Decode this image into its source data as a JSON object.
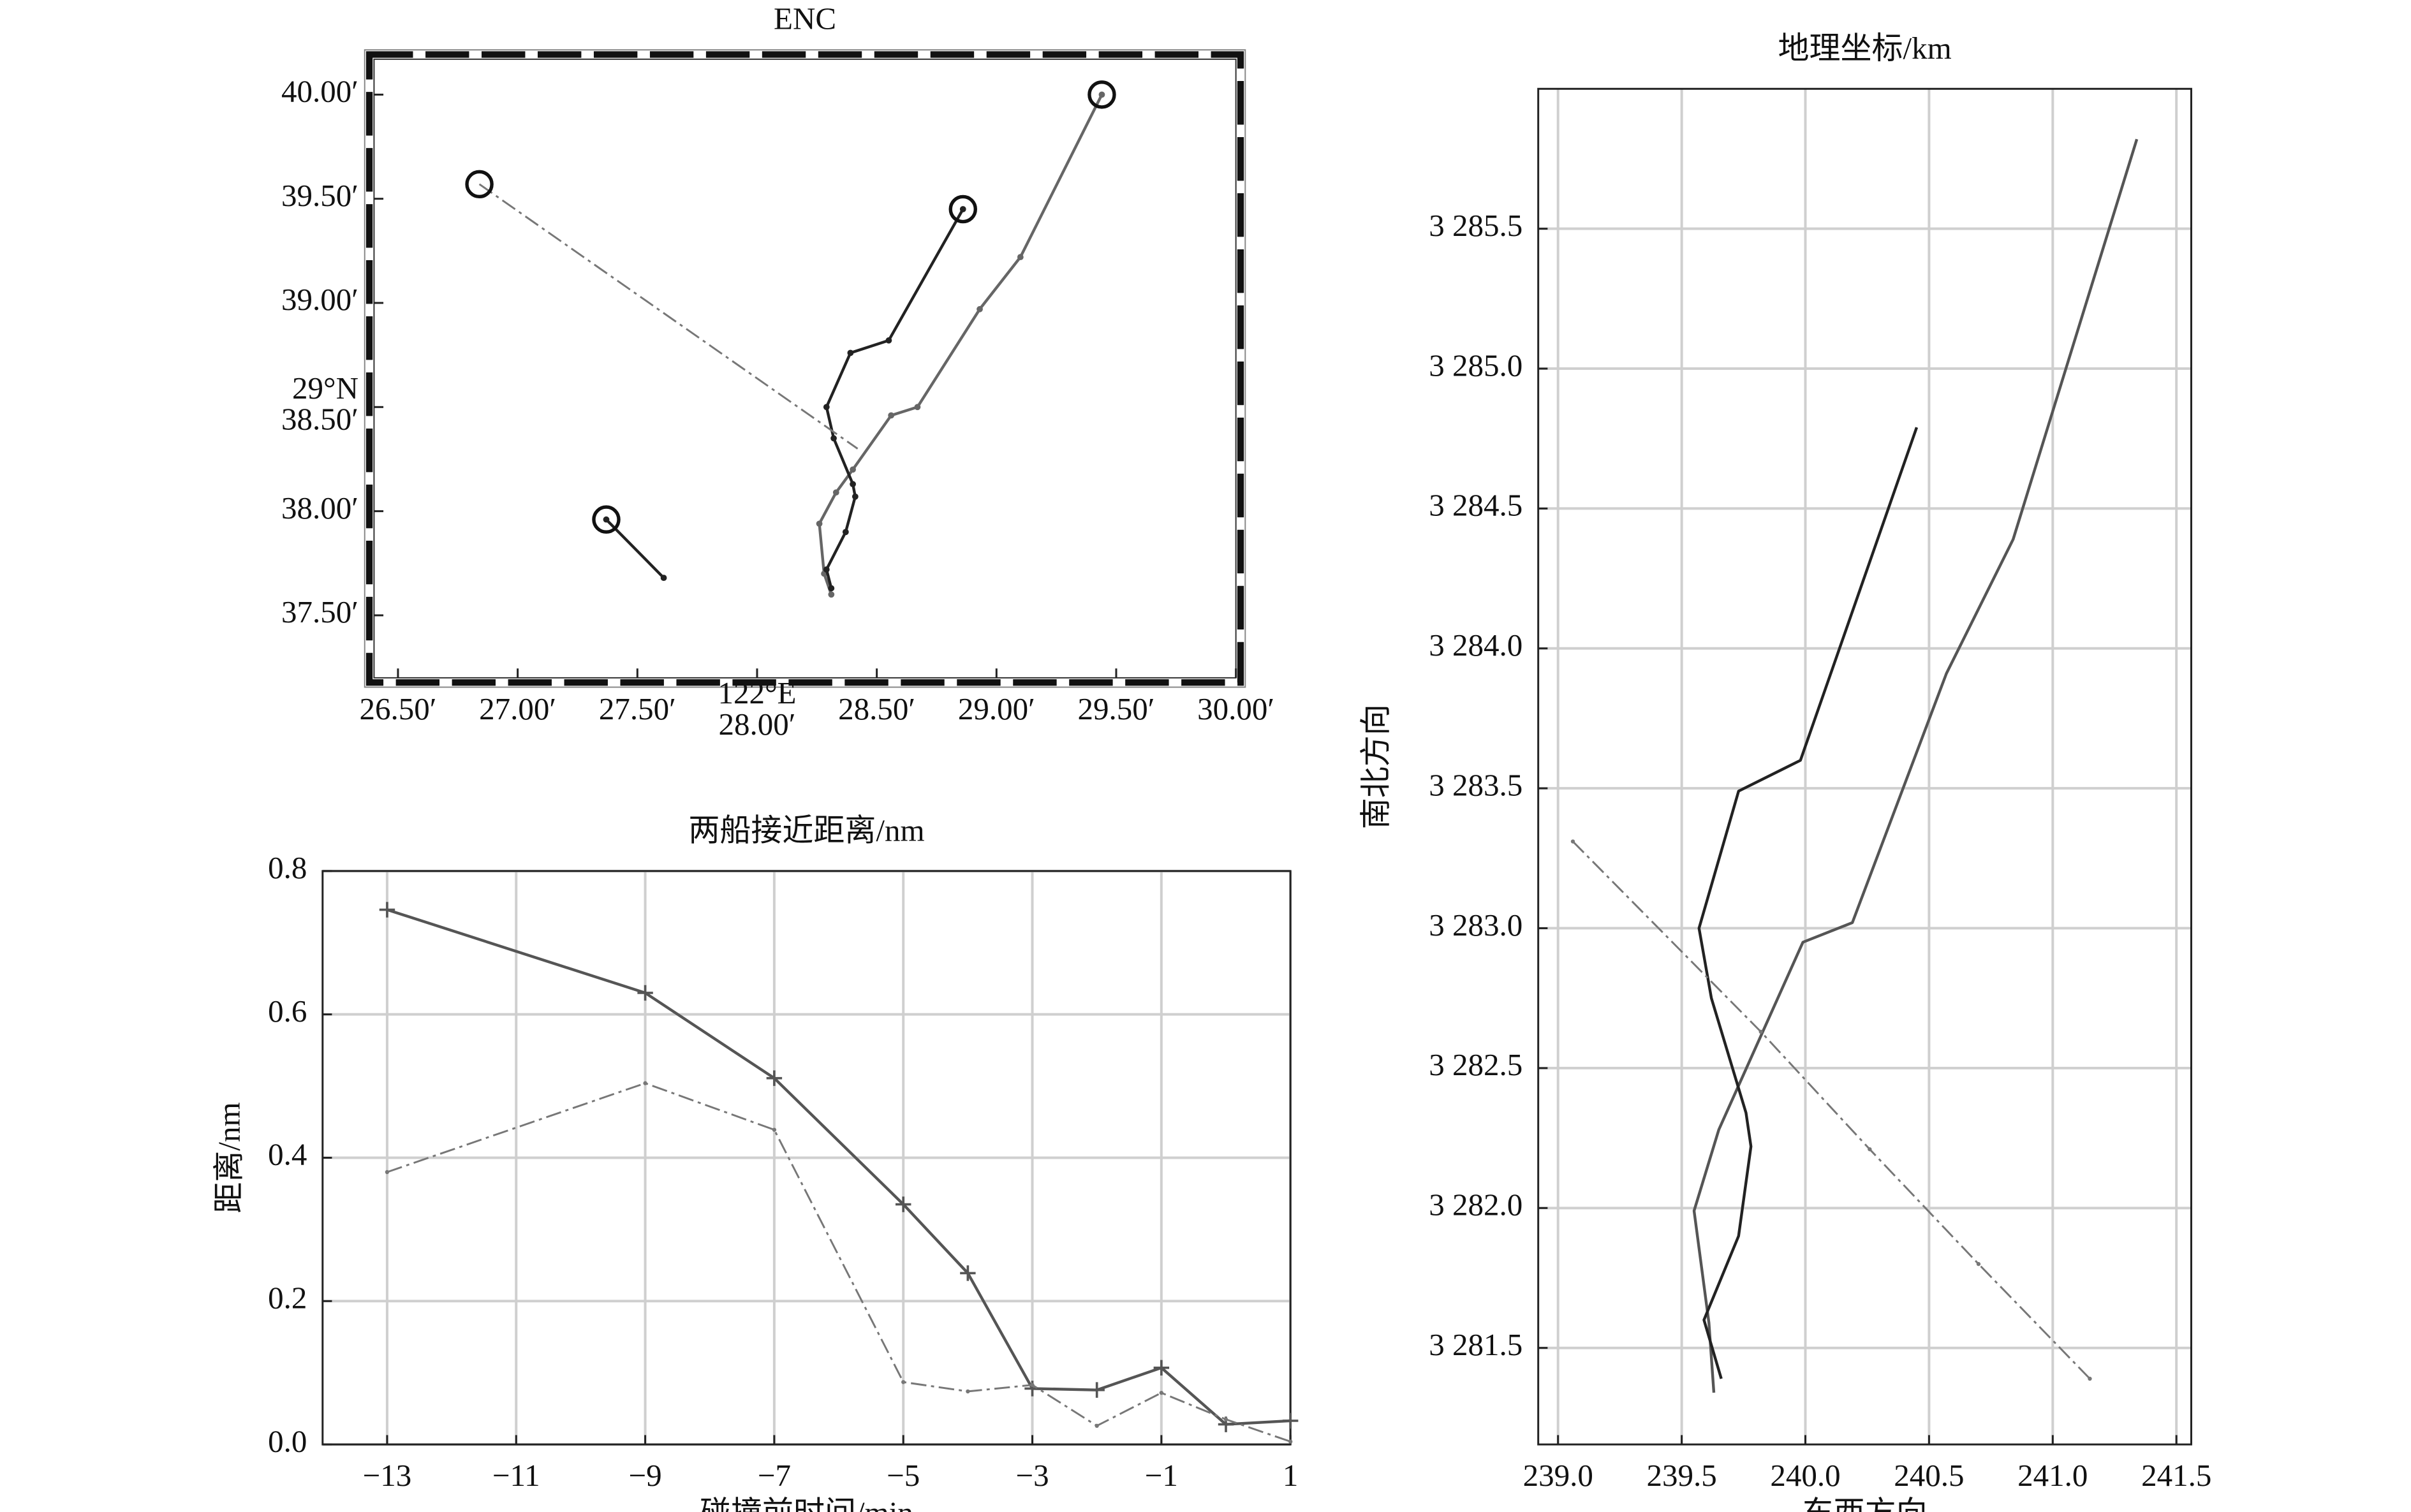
{
  "chart_data": [
    {
      "type": "line",
      "title": "ENC",
      "frame": "map-border",
      "xlim": [
        26.4,
        30.0
      ],
      "ylim": [
        37.2,
        40.17
      ],
      "xticks": [
        {
          "value": 26.5,
          "label": "26.50′"
        },
        {
          "value": 27.0,
          "label": "27.00′"
        },
        {
          "value": 27.5,
          "label": "27.50′"
        },
        {
          "value": 28.0,
          "label": "122°E\n28.00′"
        },
        {
          "value": 28.5,
          "label": "28.50′"
        },
        {
          "value": 29.0,
          "label": "29.00′"
        },
        {
          "value": 29.5,
          "label": "29.50′"
        },
        {
          "value": 30.0,
          "label": "30.00′"
        }
      ],
      "yticks": [
        {
          "value": 37.5,
          "label": "37.50′"
        },
        {
          "value": 38.0,
          "label": "38.00′"
        },
        {
          "value": 38.5,
          "label": "29°N\n38.50′"
        },
        {
          "value": 39.0,
          "label": "39.00′"
        },
        {
          "value": 39.5,
          "label": "39.50′"
        },
        {
          "value": 40.0,
          "label": "40.00′"
        }
      ],
      "grid": false,
      "series": [
        {
          "color": "#666666",
          "line_style": "solid",
          "marker": "dot",
          "start_marker": "circle",
          "x": [
            29.44,
            29.1,
            28.93,
            28.67,
            28.56,
            28.4,
            28.33,
            28.26,
            28.28,
            28.31
          ],
          "values": [
            40.0,
            39.22,
            38.97,
            38.5,
            38.46,
            38.2,
            38.09,
            37.94,
            37.7,
            37.6
          ]
        },
        {
          "color": "#222222",
          "line_style": "solid",
          "marker": "dot",
          "start_marker": "circle",
          "x": [
            28.86,
            28.55,
            28.39,
            28.29,
            28.32,
            28.4,
            28.41,
            28.37,
            28.29,
            28.31
          ],
          "values": [
            39.45,
            38.82,
            38.76,
            38.5,
            38.35,
            38.13,
            38.07,
            37.9,
            37.72,
            37.63
          ]
        },
        {
          "color": "#777777",
          "line_style": "dashdot",
          "marker": "none",
          "start_marker": "circle",
          "x": [
            26.84,
            28.42
          ],
          "values": [
            39.57,
            38.3
          ]
        },
        {
          "color": "#222222",
          "line_style": "solid",
          "marker": "dot",
          "start_marker": "circle",
          "x": [
            27.37,
            27.61
          ],
          "values": [
            37.96,
            37.68
          ]
        }
      ]
    },
    {
      "type": "line",
      "title": "两船接近距离/nm",
      "xlabel": "碰撞前时间/min",
      "ylabel": "距离/nm",
      "frame": "box",
      "xlim": [
        -14,
        1
      ],
      "ylim": [
        0,
        0.8
      ],
      "xticks": [
        {
          "value": -13,
          "label": "−13"
        },
        {
          "value": -11,
          "label": "−11"
        },
        {
          "value": -9,
          "label": "−9"
        },
        {
          "value": -7,
          "label": "−7"
        },
        {
          "value": -5,
          "label": "−5"
        },
        {
          "value": -3,
          "label": "−3"
        },
        {
          "value": -1,
          "label": "−1"
        },
        1
      ],
      "yticks": [
        {
          "value": 0,
          "label": "0.0"
        },
        {
          "value": 0.2,
          "label": "0.2"
        },
        {
          "value": 0.4,
          "label": "0.4"
        },
        {
          "value": 0.6,
          "label": "0.6"
        },
        {
          "value": 0.8,
          "label": "0.8"
        }
      ],
      "grid": true,
      "x": [
        -13,
        -9,
        -7,
        -5,
        -4,
        -3,
        -2,
        -1,
        0,
        1
      ],
      "series": [
        {
          "color": "#555555",
          "line_style": "solid",
          "marker": "plus",
          "values": [
            0.746,
            0.63,
            0.511,
            0.335,
            0.239,
            0.078,
            0.076,
            0.107,
            0.028,
            0.033
          ]
        },
        {
          "color": "#777777",
          "line_style": "dashdot",
          "marker": "dot",
          "values": [
            0.38,
            0.504,
            0.439,
            0.087,
            0.074,
            0.083,
            0.026,
            0.072,
            0.035,
            0.004
          ]
        }
      ]
    },
    {
      "type": "line",
      "title": "地理坐标/km",
      "xlabel": "东西方向",
      "ylabel": "南北方向",
      "frame": "box",
      "xlim": [
        238.92,
        241.56
      ],
      "ylim": [
        3281.155,
        3286.0
      ],
      "xticks": [
        {
          "value": 239.0,
          "label": "239.0"
        },
        {
          "value": 239.5,
          "label": "239.5"
        },
        {
          "value": 240.0,
          "label": "240.0"
        },
        {
          "value": 240.5,
          "label": "240.5"
        },
        {
          "value": 241.0,
          "label": "241.0"
        },
        {
          "value": 241.5,
          "label": "241.5"
        }
      ],
      "yticks": [
        {
          "value": 3281.5,
          "label": "3 281.5"
        },
        {
          "value": 3282.0,
          "label": "3 282.0"
        },
        {
          "value": 3282.5,
          "label": "3 282.5"
        },
        {
          "value": 3283.0,
          "label": "3 283.0"
        },
        {
          "value": 3283.5,
          "label": "3 283.5"
        },
        {
          "value": 3284.0,
          "label": "3 284.0"
        },
        {
          "value": 3284.5,
          "label": "3 284.5"
        },
        {
          "value": 3285.0,
          "label": "3 285.0"
        },
        {
          "value": 3285.5,
          "label": "3 285.5"
        }
      ],
      "grid": true,
      "series": [
        {
          "color": "#555555",
          "line_style": "solid",
          "marker": "none",
          "x": [
            241.34,
            240.84,
            240.57,
            240.19,
            239.99,
            239.65,
            239.55,
            239.61,
            239.63
          ],
          "values": [
            3285.82,
            3284.39,
            3283.91,
            3283.02,
            3282.95,
            3282.28,
            3281.99,
            3281.59,
            3281.34
          ]
        },
        {
          "color": "#222222",
          "line_style": "solid",
          "marker": "none",
          "x": [
            240.45,
            239.98,
            239.73,
            239.57,
            239.62,
            239.76,
            239.78,
            239.73,
            239.59,
            239.66
          ],
          "values": [
            3284.79,
            3283.6,
            3283.49,
            3283.0,
            3282.75,
            3282.34,
            3282.22,
            3281.9,
            3281.6,
            3281.39
          ]
        },
        {
          "color": "#777777",
          "line_style": "dashdot",
          "marker": "dot",
          "x": [
            239.06,
            239.82,
            240.26,
            240.7,
            241.15
          ],
          "values": [
            3283.31,
            3282.63,
            3282.21,
            3281.8,
            3281.39
          ]
        }
      ]
    }
  ]
}
